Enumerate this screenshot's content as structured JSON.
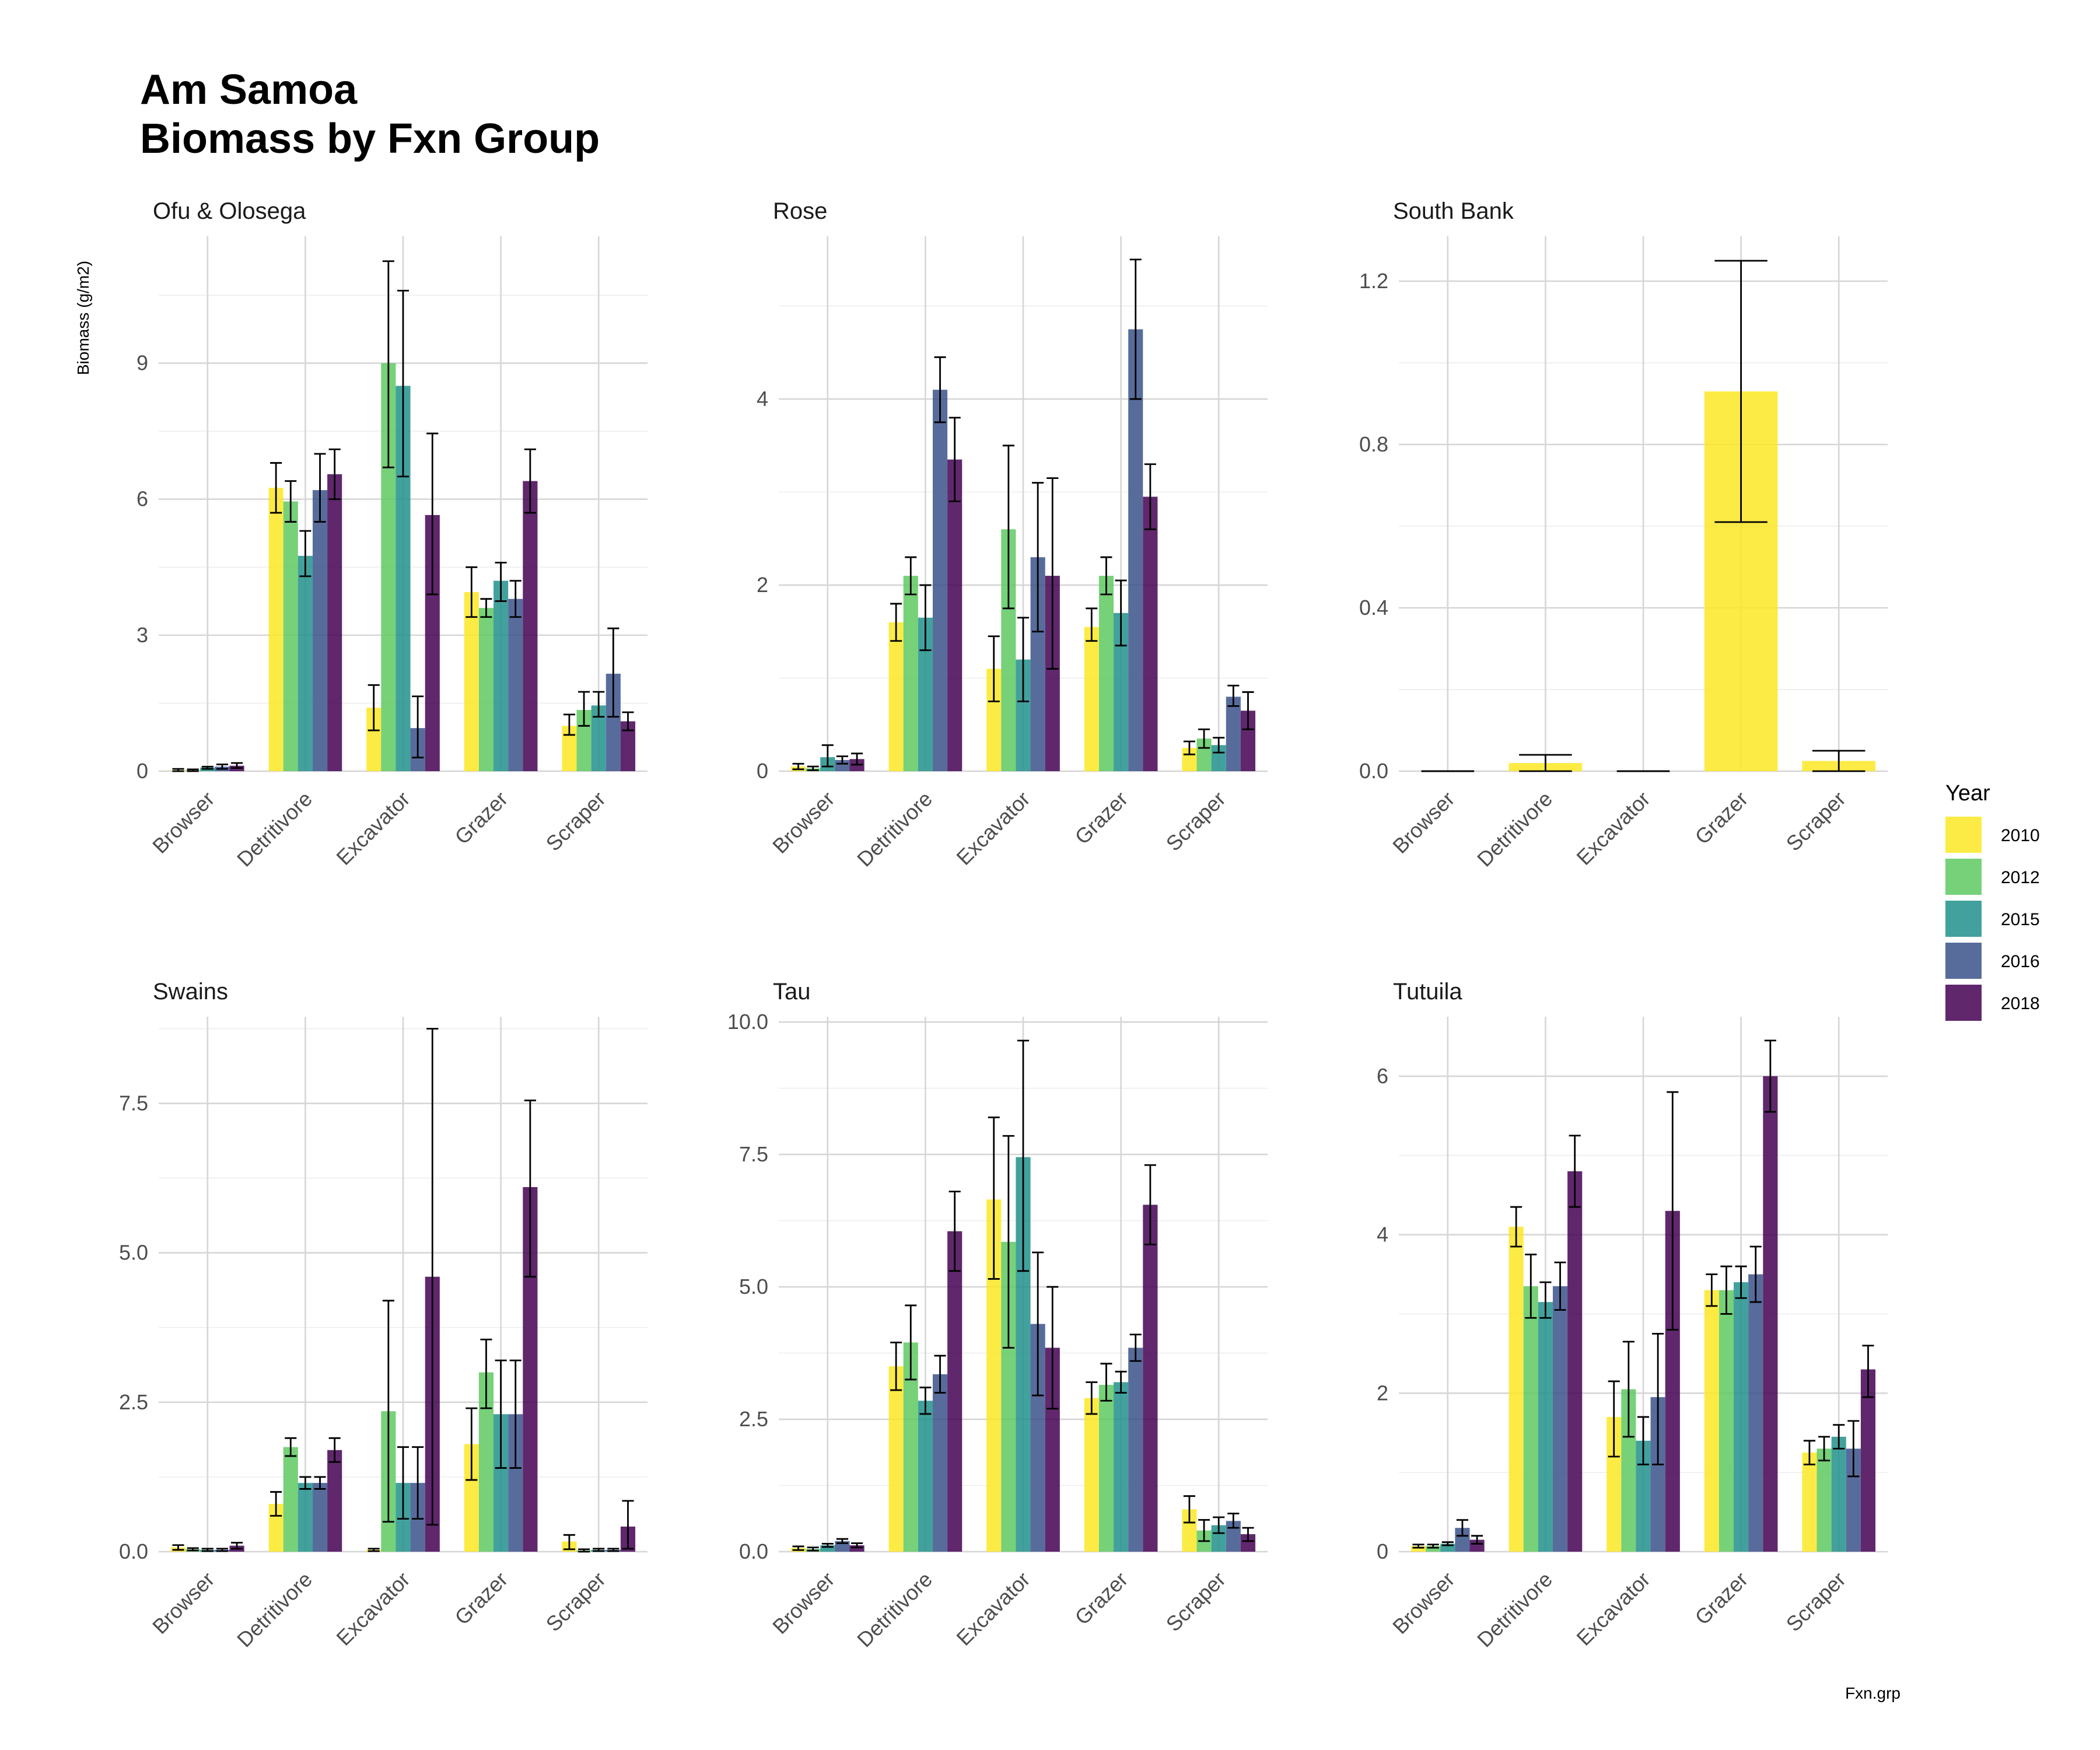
{
  "title_lines": [
    "Am Samoa",
    "Biomass by Fxn Group"
  ],
  "ylabel": "Biomass (g/m2)",
  "xlabel": "Fxn.grp",
  "legend": {
    "title": "Year",
    "entries": [
      {
        "label": "2010",
        "color": "#FDE725"
      },
      {
        "label": "2012",
        "color": "#5EC962"
      },
      {
        "label": "2015",
        "color": "#21918C"
      },
      {
        "label": "2016",
        "color": "#3B528B"
      },
      {
        "label": "2018",
        "color": "#440154"
      }
    ]
  },
  "chart_data": [
    {
      "type": "bar",
      "title": "Ofu & Olosega",
      "categories": [
        "Browser",
        "Detritivore",
        "Excavator",
        "Grazer",
        "Scraper"
      ],
      "ylim": [
        0,
        11.8
      ],
      "yticks": [
        0,
        3,
        6,
        9
      ],
      "tick_labels": [
        "0",
        "3",
        "6",
        "9"
      ],
      "series": [
        {
          "name": "2010",
          "values": [
            0.02,
            6.25,
            1.4,
            3.95,
            1.0
          ],
          "errors": [
            [
              0.0,
              0.05
            ],
            [
              5.7,
              6.8
            ],
            [
              0.9,
              1.9
            ],
            [
              3.4,
              4.5
            ],
            [
              0.8,
              1.25
            ]
          ]
        },
        {
          "name": "2012",
          "values": [
            0.02,
            5.95,
            9.0,
            3.6,
            1.35
          ],
          "errors": [
            [
              0.0,
              0.04
            ],
            [
              5.5,
              6.4
            ],
            [
              6.7,
              11.25
            ],
            [
              3.4,
              3.8
            ],
            [
              1.0,
              1.75
            ]
          ]
        },
        {
          "name": "2015",
          "values": [
            0.08,
            4.75,
            8.5,
            4.2,
            1.45
          ],
          "errors": [
            [
              0.05,
              0.1
            ],
            [
              4.3,
              5.3
            ],
            [
              6.5,
              10.6
            ],
            [
              3.75,
              4.6
            ],
            [
              1.2,
              1.75
            ]
          ]
        },
        {
          "name": "2016",
          "values": [
            0.1,
            6.2,
            0.95,
            3.8,
            2.15
          ],
          "errors": [
            [
              0.05,
              0.15
            ],
            [
              5.5,
              7.0
            ],
            [
              0.3,
              1.65
            ],
            [
              3.4,
              4.2
            ],
            [
              1.2,
              3.15
            ]
          ]
        },
        {
          "name": "2018",
          "values": [
            0.12,
            6.55,
            5.65,
            6.4,
            1.1
          ],
          "errors": [
            [
              0.07,
              0.18
            ],
            [
              6.0,
              7.1
            ],
            [
              3.9,
              7.45
            ],
            [
              5.7,
              7.1
            ],
            [
              0.9,
              1.3
            ]
          ]
        }
      ]
    },
    {
      "type": "bar",
      "title": "Rose",
      "categories": [
        "Browser",
        "Detritivore",
        "Excavator",
        "Grazer",
        "Scraper"
      ],
      "ylim": [
        0,
        5.75
      ],
      "yticks": [
        0,
        2,
        4
      ],
      "tick_labels": [
        "0",
        "2",
        "4"
      ],
      "series": [
        {
          "name": "2010",
          "values": [
            0.05,
            1.6,
            1.1,
            1.55,
            0.25
          ],
          "errors": [
            [
              0.02,
              0.08
            ],
            [
              1.4,
              1.8
            ],
            [
              0.75,
              1.45
            ],
            [
              1.4,
              1.75
            ],
            [
              0.18,
              0.32
            ]
          ]
        },
        {
          "name": "2012",
          "values": [
            0.03,
            2.1,
            2.6,
            2.1,
            0.35
          ],
          "errors": [
            [
              0.01,
              0.05
            ],
            [
              1.9,
              2.3
            ],
            [
              1.75,
              3.5
            ],
            [
              1.9,
              2.3
            ],
            [
              0.25,
              0.45
            ]
          ]
        },
        {
          "name": "2015",
          "values": [
            0.15,
            1.65,
            1.2,
            1.7,
            0.28
          ],
          "errors": [
            [
              0.05,
              0.28
            ],
            [
              1.3,
              2.0
            ],
            [
              0.75,
              1.65
            ],
            [
              1.35,
              2.05
            ],
            [
              0.2,
              0.36
            ]
          ]
        },
        {
          "name": "2016",
          "values": [
            0.12,
            4.1,
            2.3,
            4.75,
            0.8
          ],
          "errors": [
            [
              0.08,
              0.16
            ],
            [
              3.75,
              4.45
            ],
            [
              1.5,
              3.1
            ],
            [
              4.0,
              5.5
            ],
            [
              0.7,
              0.92
            ]
          ]
        },
        {
          "name": "2018",
          "values": [
            0.13,
            3.35,
            2.1,
            2.95,
            0.65
          ],
          "errors": [
            [
              0.07,
              0.19
            ],
            [
              2.9,
              3.8
            ],
            [
              1.1,
              3.15
            ],
            [
              2.6,
              3.3
            ],
            [
              0.45,
              0.85
            ]
          ]
        }
      ]
    },
    {
      "type": "bar",
      "title": "South Bank",
      "categories": [
        "Browser",
        "Detritivore",
        "Excavator",
        "Grazer",
        "Scraper"
      ],
      "ylim": [
        0,
        1.31
      ],
      "yticks": [
        0,
        0.4,
        0.8,
        1.2
      ],
      "tick_labels": [
        "0.0",
        "0.4",
        "0.8",
        "1.2"
      ],
      "series": [
        {
          "name": "2010",
          "values": [
            0.0,
            0.02,
            0.0,
            0.93,
            0.025
          ],
          "errors": [
            [
              0.0,
              0.0
            ],
            [
              0.0,
              0.04
            ],
            [
              0.0,
              0.0
            ],
            [
              0.61,
              1.25
            ],
            [
              0.0,
              0.05
            ]
          ]
        }
      ]
    },
    {
      "type": "bar",
      "title": "Swains",
      "categories": [
        "Browser",
        "Detritivore",
        "Excavator",
        "Grazer",
        "Scraper"
      ],
      "ylim": [
        0,
        8.95
      ],
      "yticks": [
        0,
        2.5,
        5,
        7.5
      ],
      "tick_labels": [
        "0.0",
        "2.5",
        "5.0",
        "7.5"
      ],
      "series": [
        {
          "name": "2010",
          "values": [
            0.07,
            0.8,
            0.03,
            1.8,
            0.17
          ],
          "errors": [
            [
              0.03,
              0.11
            ],
            [
              0.6,
              1.0
            ],
            [
              0.01,
              0.05
            ],
            [
              1.2,
              2.4
            ],
            [
              0.04,
              0.28
            ]
          ]
        },
        {
          "name": "2012",
          "values": [
            0.04,
            1.75,
            2.35,
            3.0,
            0.02
          ],
          "errors": [
            [
              0.02,
              0.06
            ],
            [
              1.6,
              1.9
            ],
            [
              0.5,
              4.2
            ],
            [
              2.4,
              3.55
            ],
            [
              0.0,
              0.04
            ]
          ]
        },
        {
          "name": "2015",
          "values": [
            0.03,
            1.15,
            1.15,
            2.3,
            0.03
          ],
          "errors": [
            [
              0.01,
              0.05
            ],
            [
              1.05,
              1.25
            ],
            [
              0.55,
              1.75
            ],
            [
              1.4,
              3.2
            ],
            [
              0.01,
              0.05
            ]
          ]
        },
        {
          "name": "2016",
          "values": [
            0.03,
            1.15,
            1.15,
            2.3,
            0.03
          ],
          "errors": [
            [
              0.01,
              0.05
            ],
            [
              1.05,
              1.25
            ],
            [
              0.55,
              1.75
            ],
            [
              1.4,
              3.2
            ],
            [
              0.01,
              0.05
            ]
          ]
        },
        {
          "name": "2018",
          "values": [
            0.1,
            1.7,
            4.6,
            6.1,
            0.42
          ],
          "errors": [
            [
              0.05,
              0.15
            ],
            [
              1.5,
              1.9
            ],
            [
              0.45,
              8.75
            ],
            [
              4.6,
              7.55
            ],
            [
              0.05,
              0.85
            ]
          ]
        }
      ]
    },
    {
      "type": "bar",
      "title": "Tau",
      "categories": [
        "Browser",
        "Detritivore",
        "Excavator",
        "Grazer",
        "Scraper"
      ],
      "ylim": [
        0,
        10.1
      ],
      "yticks": [
        0,
        2.5,
        5,
        7.5,
        10
      ],
      "tick_labels": [
        "0.0",
        "2.5",
        "5.0",
        "7.5",
        "10.0"
      ],
      "series": [
        {
          "name": "2010",
          "values": [
            0.07,
            3.5,
            6.65,
            2.9,
            0.8
          ],
          "errors": [
            [
              0.03,
              0.1
            ],
            [
              3.05,
              3.95
            ],
            [
              5.15,
              8.2
            ],
            [
              2.6,
              3.2
            ],
            [
              0.55,
              1.05
            ]
          ]
        },
        {
          "name": "2012",
          "values": [
            0.05,
            3.95,
            5.85,
            3.15,
            0.4
          ],
          "errors": [
            [
              0.02,
              0.08
            ],
            [
              3.25,
              4.65
            ],
            [
              3.85,
              7.85
            ],
            [
              2.85,
              3.55
            ],
            [
              0.2,
              0.6
            ]
          ]
        },
        {
          "name": "2015",
          "values": [
            0.12,
            2.85,
            7.45,
            3.2,
            0.5
          ],
          "errors": [
            [
              0.09,
              0.15
            ],
            [
              2.6,
              3.1
            ],
            [
              5.3,
              9.65
            ],
            [
              3.0,
              3.4
            ],
            [
              0.35,
              0.65
            ]
          ]
        },
        {
          "name": "2016",
          "values": [
            0.2,
            3.35,
            4.3,
            3.85,
            0.58
          ],
          "errors": [
            [
              0.16,
              0.24
            ],
            [
              3.0,
              3.7
            ],
            [
              2.95,
              5.65
            ],
            [
              3.6,
              4.1
            ],
            [
              0.45,
              0.72
            ]
          ]
        },
        {
          "name": "2018",
          "values": [
            0.12,
            6.05,
            3.85,
            6.55,
            0.33
          ],
          "errors": [
            [
              0.08,
              0.16
            ],
            [
              5.3,
              6.8
            ],
            [
              2.7,
              5.0
            ],
            [
              5.8,
              7.3
            ],
            [
              0.2,
              0.45
            ]
          ]
        }
      ]
    },
    {
      "type": "bar",
      "title": "Tutuila",
      "categories": [
        "Browser",
        "Detritivore",
        "Excavator",
        "Grazer",
        "Scraper"
      ],
      "ylim": [
        0,
        6.75
      ],
      "yticks": [
        0,
        2,
        4,
        6
      ],
      "tick_labels": [
        "0",
        "2",
        "4",
        "6"
      ],
      "series": [
        {
          "name": "2010",
          "values": [
            0.07,
            4.1,
            1.7,
            3.3,
            1.25
          ],
          "errors": [
            [
              0.05,
              0.09
            ],
            [
              3.85,
              4.35
            ],
            [
              1.2,
              2.15
            ],
            [
              3.1,
              3.5
            ],
            [
              1.1,
              1.4
            ]
          ]
        },
        {
          "name": "2012",
          "values": [
            0.07,
            3.35,
            2.05,
            3.3,
            1.3
          ],
          "errors": [
            [
              0.05,
              0.09
            ],
            [
              2.95,
              3.75
            ],
            [
              1.45,
              2.65
            ],
            [
              3.0,
              3.6
            ],
            [
              1.15,
              1.45
            ]
          ]
        },
        {
          "name": "2015",
          "values": [
            0.1,
            3.15,
            1.4,
            3.4,
            1.45
          ],
          "errors": [
            [
              0.08,
              0.12
            ],
            [
              2.95,
              3.4
            ],
            [
              1.1,
              1.7
            ],
            [
              3.2,
              3.6
            ],
            [
              1.3,
              1.6
            ]
          ]
        },
        {
          "name": "2016",
          "values": [
            0.3,
            3.35,
            1.95,
            3.5,
            1.3
          ],
          "errors": [
            [
              0.2,
              0.4
            ],
            [
              3.05,
              3.65
            ],
            [
              1.1,
              2.75
            ],
            [
              3.15,
              3.85
            ],
            [
              0.95,
              1.65
            ]
          ]
        },
        {
          "name": "2018",
          "values": [
            0.15,
            4.8,
            4.3,
            6.0,
            2.3
          ],
          "errors": [
            [
              0.1,
              0.2
            ],
            [
              4.35,
              5.25
            ],
            [
              2.8,
              5.8
            ],
            [
              5.55,
              6.45
            ],
            [
              1.95,
              2.6
            ]
          ]
        }
      ]
    }
  ]
}
